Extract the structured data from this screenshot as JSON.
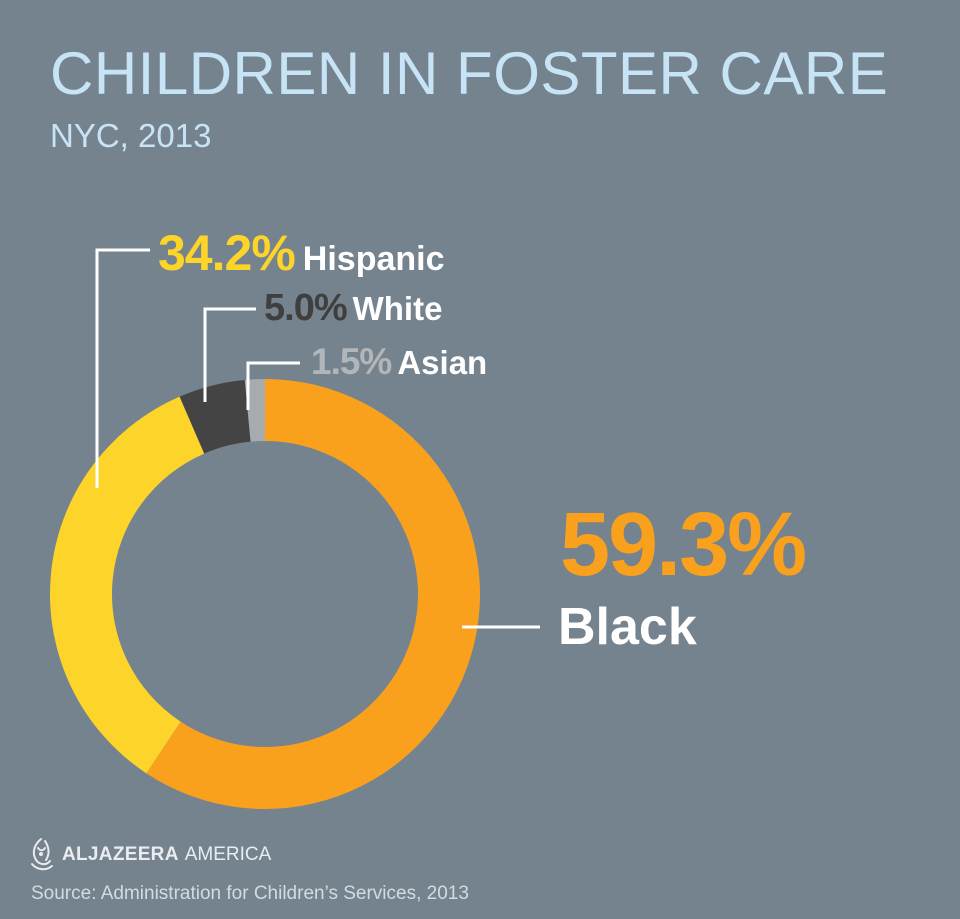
{
  "header": {
    "title": "CHILDREN IN FOSTER CARE",
    "subtitle": "NYC, 2013"
  },
  "chart_data": {
    "type": "pie",
    "style": "donut",
    "title": "CHILDREN IN FOSTER CARE",
    "subtitle": "NYC, 2013",
    "categories": [
      "Black",
      "Hispanic",
      "White",
      "Asian"
    ],
    "values": [
      59.3,
      34.2,
      5.0,
      1.5
    ],
    "value_labels": [
      "59.3%",
      "34.2%",
      "5.0%",
      "1.5%"
    ],
    "colors": [
      "#f9a11d",
      "#fdd429",
      "#444444",
      "#a8abad"
    ]
  },
  "labels": {
    "hispanic": {
      "pct": "34.2%",
      "name": "Hispanic"
    },
    "white": {
      "pct": "5.0%",
      "name": "White"
    },
    "asian": {
      "pct": "1.5%",
      "name": "Asian"
    },
    "black": {
      "pct": "59.3%",
      "name": "Black"
    }
  },
  "footer": {
    "brand_bold": "ALJAZEERA",
    "brand_light": "AMERICA",
    "source": "Source: Administration for Children’s Services, 2013"
  },
  "colors": {
    "background": "#75838f",
    "title": "#c7e4f7",
    "leader_line": "#ffffff"
  },
  "icons": {
    "logo": "al-jazeera-logo-icon"
  }
}
